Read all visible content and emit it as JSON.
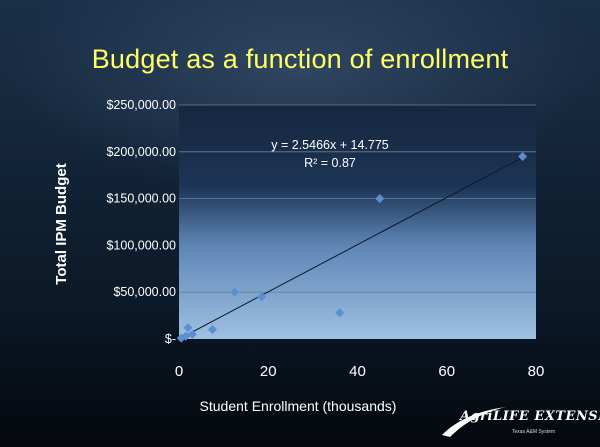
{
  "slide": {
    "title": "Budget as a function of enrollment"
  },
  "chart_data": {
    "type": "scatter",
    "title": "",
    "xlabel": "Student Enrollment (thousands)",
    "ylabel": "Total IPM Budget",
    "xlim": [
      0,
      80
    ],
    "ylim": [
      0,
      250000
    ],
    "x_ticks": [
      0,
      20,
      40,
      60,
      80
    ],
    "x_tick_labels": [
      "0",
      "20",
      "40",
      "60",
      "80"
    ],
    "y_ticks": [
      0,
      50000,
      100000,
      150000,
      200000,
      250000
    ],
    "y_tick_labels": [
      "$-",
      "$50,000.00",
      "$100,000.00",
      "$150,000.00",
      "$200,000.00",
      "$250,000.00"
    ],
    "grid": true,
    "points": [
      {
        "x": 0.5,
        "y": 1000
      },
      {
        "x": 1.5,
        "y": 3000
      },
      {
        "x": 2.0,
        "y": 12000
      },
      {
        "x": 3.0,
        "y": 5000
      },
      {
        "x": 7.5,
        "y": 10000
      },
      {
        "x": 12.5,
        "y": 50000
      },
      {
        "x": 18.5,
        "y": 45000
      },
      {
        "x": 36.0,
        "y": 28000
      },
      {
        "x": 45.0,
        "y": 150000
      },
      {
        "x": 77.0,
        "y": 195000
      }
    ],
    "trendline": {
      "x": [
        0,
        77
      ],
      "y": [
        0,
        194000
      ]
    },
    "annotation": {
      "equation": "y = 2.5466x + 14.775",
      "r2": "R² = 0.87"
    },
    "colors": {
      "marker": "#5b8fd0",
      "trendline": "#0d1a2e",
      "gridline": "#6d7f95",
      "title": "#ffff66"
    }
  },
  "logo": {
    "text": "AgriLIFE EXTENSION",
    "subtext": "Texas A&M System"
  }
}
